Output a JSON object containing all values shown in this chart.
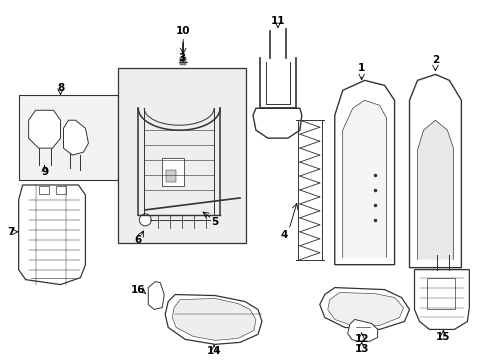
{
  "background_color": "#ffffff",
  "line_color": "#333333",
  "fig_width": 4.89,
  "fig_height": 3.6,
  "dpi": 100
}
